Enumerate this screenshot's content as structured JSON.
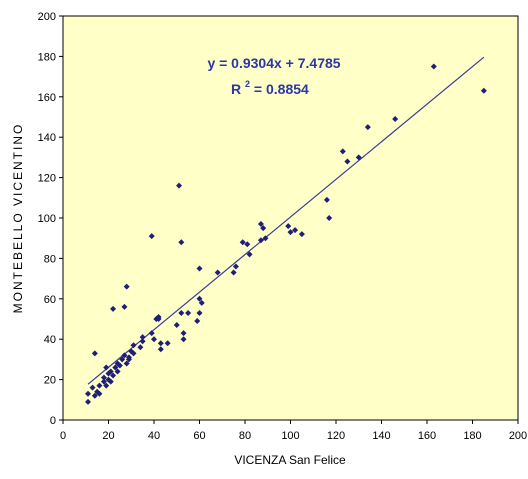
{
  "chart_data": {
    "type": "scatter",
    "title": "",
    "xlabel": "VICENZA  San Felice",
    "ylabel": "MONTEBELLO  VICENTINO",
    "xlim": [
      0,
      200
    ],
    "ylim": [
      0,
      200
    ],
    "x_ticks": [
      "0",
      "20",
      "40",
      "60",
      "80",
      "100",
      "120",
      "140",
      "160",
      "180",
      "200"
    ],
    "y_ticks": [
      "0",
      "20",
      "40",
      "60",
      "80",
      "100",
      "120",
      "140",
      "160",
      "180",
      "200"
    ],
    "grid": false,
    "legend": "none",
    "colors": {
      "plot_bg": "#ffffc8",
      "marker": "#1f1f78",
      "trendline": "#3a3a9a",
      "equation": "#2b36a8"
    },
    "trendline": {
      "slope": 0.9304,
      "intercept": 7.4785,
      "x_start": 11,
      "x_end": 185
    },
    "annotation": {
      "equation": "y = 0.9304x + 7.4785",
      "r2_prefix": "R",
      "r2_sup": "2",
      "r2_value": " = 0.8854"
    },
    "points": [
      [
        11,
        9
      ],
      [
        11,
        13
      ],
      [
        13,
        16
      ],
      [
        14,
        33
      ],
      [
        14,
        12
      ],
      [
        15,
        14
      ],
      [
        16,
        17
      ],
      [
        16,
        13
      ],
      [
        18,
        19
      ],
      [
        18,
        21
      ],
      [
        19,
        26
      ],
      [
        19,
        17
      ],
      [
        20,
        23
      ],
      [
        20,
        20
      ],
      [
        21,
        19
      ],
      [
        21,
        24
      ],
      [
        22,
        55
      ],
      [
        22,
        22
      ],
      [
        23,
        26
      ],
      [
        24,
        24
      ],
      [
        24,
        28
      ],
      [
        25,
        27
      ],
      [
        26,
        30
      ],
      [
        27,
        32
      ],
      [
        27,
        56
      ],
      [
        28,
        66
      ],
      [
        28,
        28
      ],
      [
        29,
        31
      ],
      [
        29,
        30
      ],
      [
        30,
        34
      ],
      [
        31,
        33
      ],
      [
        31,
        37
      ],
      [
        34,
        36
      ],
      [
        35,
        39
      ],
      [
        35,
        41
      ],
      [
        39,
        91
      ],
      [
        39,
        43
      ],
      [
        40,
        40
      ],
      [
        41,
        50
      ],
      [
        42,
        50
      ],
      [
        42,
        51
      ],
      [
        43,
        38
      ],
      [
        43,
        35
      ],
      [
        46,
        38
      ],
      [
        50,
        47
      ],
      [
        51,
        116
      ],
      [
        52,
        88
      ],
      [
        52,
        53
      ],
      [
        53,
        40
      ],
      [
        53,
        43
      ],
      [
        55,
        53
      ],
      [
        59,
        49
      ],
      [
        60,
        75
      ],
      [
        60,
        53
      ],
      [
        60,
        60
      ],
      [
        61,
        58
      ],
      [
        68,
        73
      ],
      [
        75,
        73
      ],
      [
        76,
        76
      ],
      [
        79,
        88
      ],
      [
        81,
        87
      ],
      [
        82,
        82
      ],
      [
        87,
        97
      ],
      [
        87,
        89
      ],
      [
        88,
        95
      ],
      [
        89,
        90
      ],
      [
        99,
        96
      ],
      [
        100,
        93
      ],
      [
        102,
        94
      ],
      [
        105,
        92
      ],
      [
        116,
        109
      ],
      [
        117,
        100
      ],
      [
        123,
        133
      ],
      [
        125,
        128
      ],
      [
        130,
        130
      ],
      [
        134,
        145
      ],
      [
        146,
        149
      ],
      [
        163,
        175
      ],
      [
        185,
        163
      ]
    ]
  }
}
